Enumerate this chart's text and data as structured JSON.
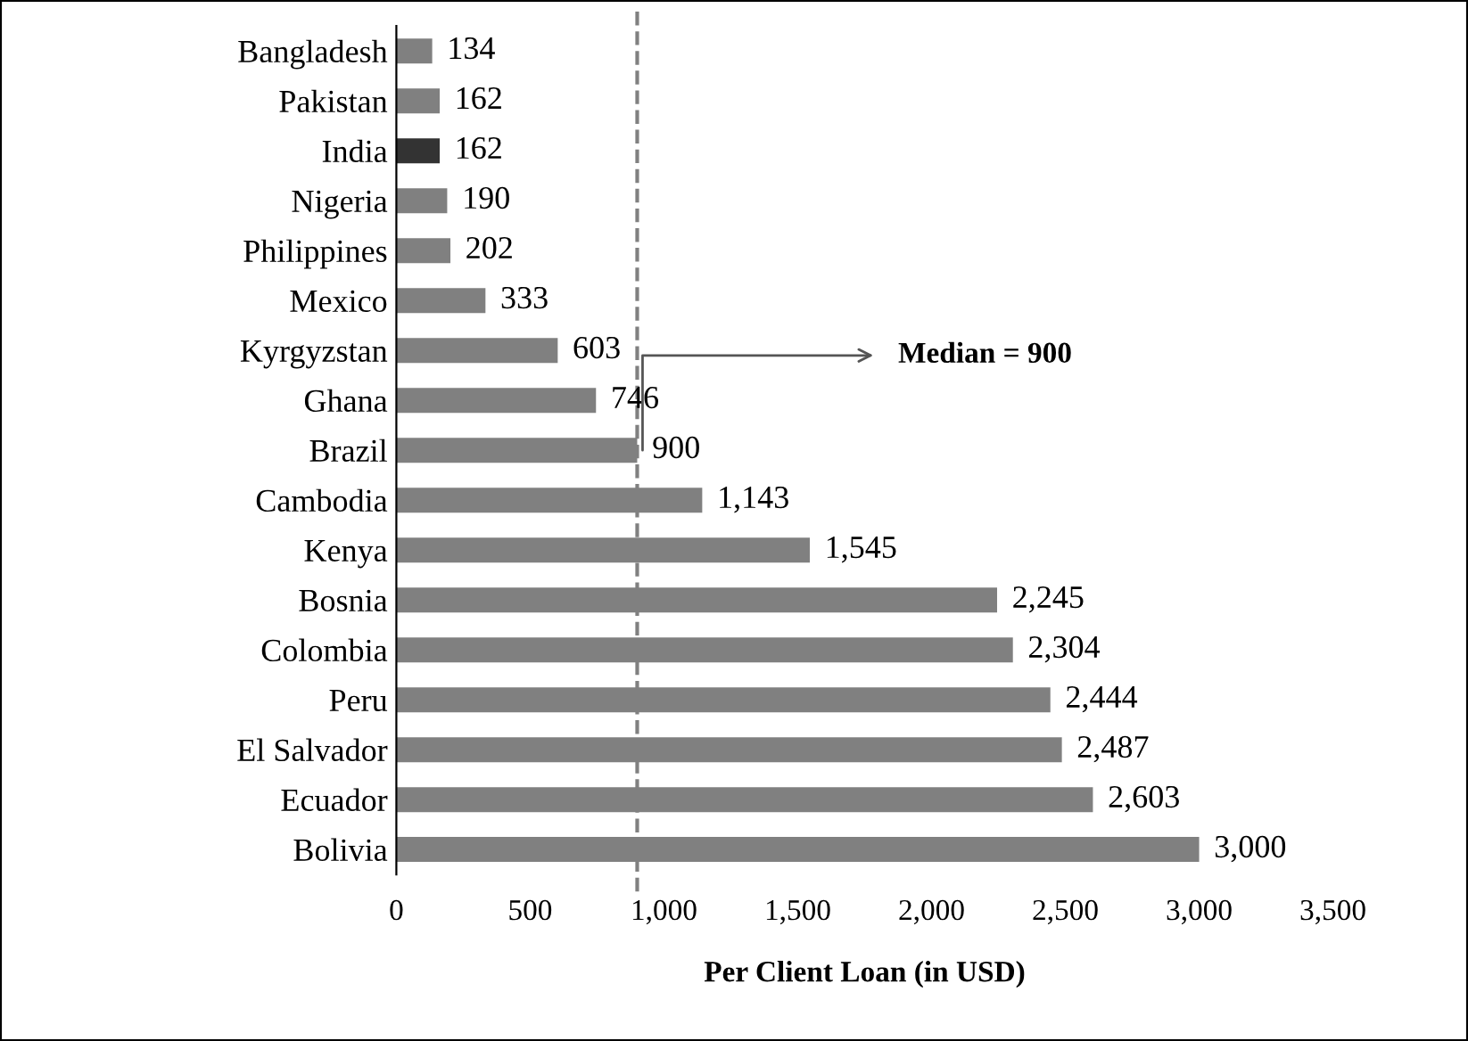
{
  "chart_data": {
    "type": "bar",
    "orientation": "horizontal",
    "xlabel": "Per Client Loan (in USD)",
    "categories": [
      "Bangladesh",
      "Pakistan",
      "India",
      "Nigeria",
      "Philippines",
      "Mexico",
      "Kyrgyzstan",
      "Ghana",
      "Brazil",
      "Cambodia",
      "Kenya",
      "Bosnia",
      "Colombia",
      "Peru",
      "El Salvador",
      "Ecuador",
      "Bolivia"
    ],
    "values": [
      134,
      162,
      162,
      190,
      202,
      333,
      603,
      746,
      900,
      1143,
      1545,
      2245,
      2304,
      2444,
      2487,
      2603,
      3000
    ],
    "value_labels": [
      "134",
      "162",
      "162",
      "190",
      "202",
      "333",
      "603",
      "746",
      "900",
      "1,143",
      "1,545",
      "2,245",
      "2,304",
      "2,444",
      "2,487",
      "2,603",
      "3,000"
    ],
    "colors": [
      "#808080",
      "#808080",
      "#333333",
      "#808080",
      "#808080",
      "#808080",
      "#808080",
      "#808080",
      "#808080",
      "#808080",
      "#808080",
      "#808080",
      "#808080",
      "#808080",
      "#808080",
      "#808080",
      "#808080"
    ],
    "xlim": [
      0,
      3500
    ],
    "xticks": [
      0,
      500,
      {
        "value": 1000,
        "label": "1,000"
      },
      {
        "value": 1500,
        "label": "1,500"
      },
      {
        "value": 2000,
        "label": "2,000"
      },
      {
        "value": 2500,
        "label": "2,500"
      },
      {
        "value": 3000,
        "label": "3,000"
      },
      {
        "value": 3500,
        "label": "3,500"
      }
    ],
    "ref_lines": [
      {
        "axis": "x",
        "value": 900,
        "label": "Median = 900",
        "color": "#808080",
        "line_style": "dashed"
      }
    ],
    "grid": false,
    "legend": false
  }
}
